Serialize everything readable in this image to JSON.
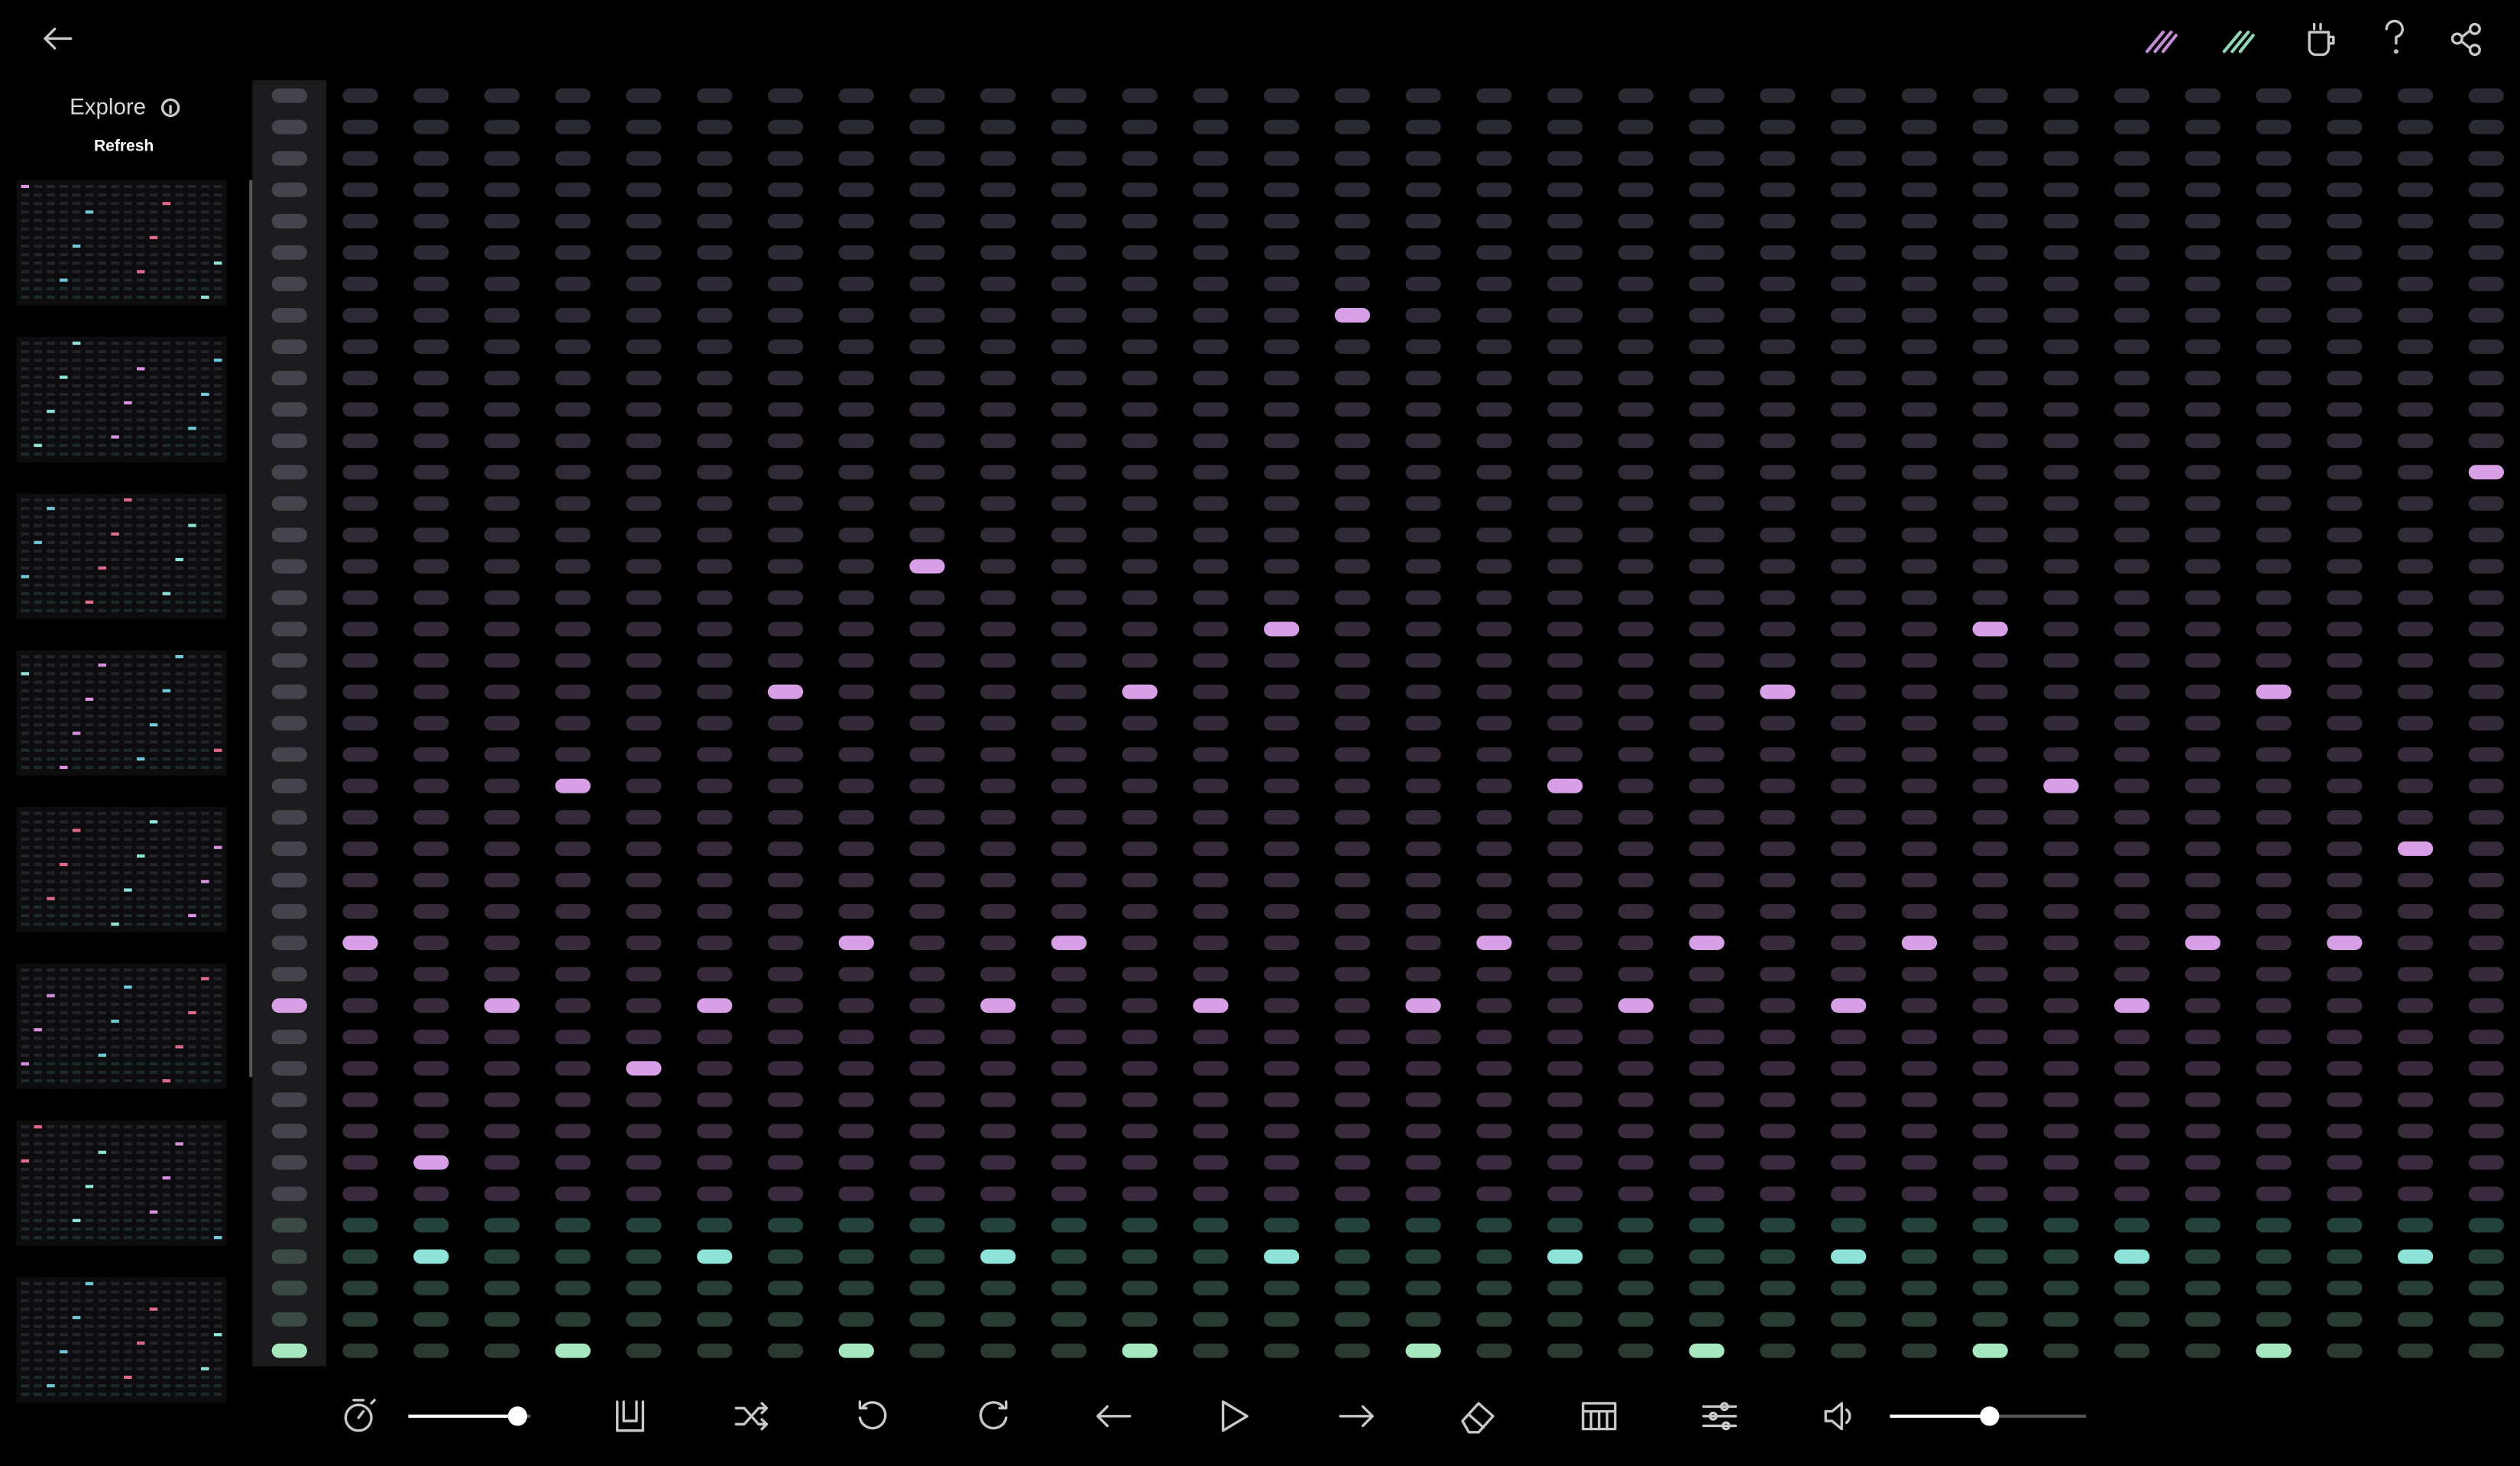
{
  "sidebar": {
    "title": "Explore",
    "refresh": "Refresh"
  }
}
